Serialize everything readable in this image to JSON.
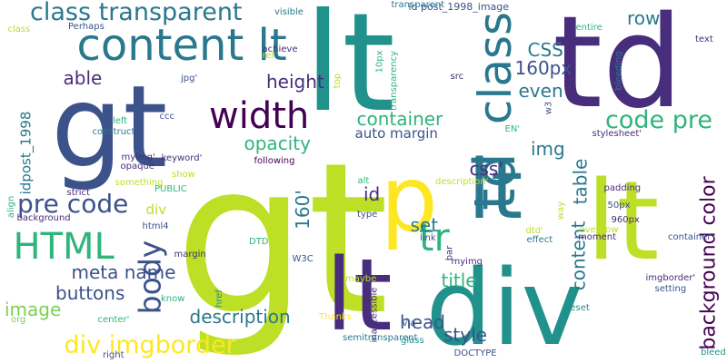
{
  "palette": {
    "background": "#ffffff",
    "lime": "#bddf26",
    "green": "#2fb47c",
    "teal": "#21918c",
    "blue": "#2a788e",
    "navy": "#3b528b",
    "indigo": "#472d7b",
    "purple": "#440154",
    "yellow": "#fde725",
    "light_green": "#7ad151"
  },
  "words": [
    {
      "text": "gt",
      "color": "lime",
      "vertical": false
    },
    {
      "text": "lt",
      "color": "teal",
      "vertical": false
    },
    {
      "text": "gt",
      "color": "navy",
      "vertical": false
    },
    {
      "text": "td",
      "color": "indigo",
      "vertical": false
    },
    {
      "text": "div",
      "color": "teal",
      "vertical": false
    },
    {
      "text": "lt",
      "color": "lime",
      "vertical": false
    },
    {
      "text": "lt",
      "color": "indigo",
      "vertical": false
    },
    {
      "text": "p",
      "color": "yellow",
      "vertical": false
    },
    {
      "text": "lt",
      "color": "blue",
      "vertical": false
    },
    {
      "text": "td",
      "color": "blue",
      "vertical": true
    },
    {
      "text": "class",
      "color": "blue",
      "vertical": true
    },
    {
      "text": "content lt",
      "color": "blue",
      "vertical": false
    },
    {
      "text": "class transparent",
      "color": "blue",
      "vertical": false
    },
    {
      "text": "width",
      "color": "purple",
      "vertical": false
    },
    {
      "text": "code pre",
      "color": "green",
      "vertical": false
    },
    {
      "text": "HTML",
      "color": "green",
      "vertical": false
    },
    {
      "text": "tr",
      "color": "green",
      "vertical": false
    },
    {
      "text": "body",
      "color": "navy",
      "vertical": true
    },
    {
      "text": "pre code",
      "color": "navy",
      "vertical": false
    },
    {
      "text": "container",
      "color": "green",
      "vertical": false
    },
    {
      "text": "height",
      "color": "indigo",
      "vertical": false
    },
    {
      "text": "opacity",
      "color": "green",
      "vertical": false
    },
    {
      "text": "div imgborder",
      "color": "yellow",
      "vertical": false
    },
    {
      "text": "description",
      "color": "blue",
      "vertical": false
    },
    {
      "text": "background color",
      "color": "purple",
      "vertical": true
    },
    {
      "text": "160px",
      "color": "navy",
      "vertical": false
    },
    {
      "text": "row",
      "color": "blue",
      "vertical": false
    },
    {
      "text": "even",
      "color": "blue",
      "vertical": false
    },
    {
      "text": "CSS",
      "color": "blue",
      "vertical": false
    },
    {
      "text": "img",
      "color": "blue",
      "vertical": false
    },
    {
      "text": "css'",
      "color": "indigo",
      "vertical": false
    },
    {
      "text": "able",
      "color": "indigo",
      "vertical": false
    },
    {
      "text": "meta name",
      "color": "navy",
      "vertical": false
    },
    {
      "text": "buttons",
      "color": "navy",
      "vertical": false
    },
    {
      "text": "image",
      "color": "light_green",
      "vertical": false
    },
    {
      "text": "head",
      "color": "navy",
      "vertical": false
    },
    {
      "text": "title",
      "color": "green",
      "vertical": false
    },
    {
      "text": "style",
      "color": "navy",
      "vertical": false
    },
    {
      "text": "set",
      "color": "blue",
      "vertical": false
    },
    {
      "text": "id",
      "color": "indigo",
      "vertical": false
    },
    {
      "text": "auto margin",
      "color": "navy",
      "vertical": false
    },
    {
      "text": "table",
      "color": "blue",
      "vertical": true
    },
    {
      "text": "content",
      "color": "blue",
      "vertical": true
    },
    {
      "text": "160'",
      "color": "blue",
      "vertical": true
    },
    {
      "text": "id post_1998_image",
      "color": "navy",
      "vertical": false
    },
    {
      "text": "div",
      "color": "lime",
      "vertical": false
    },
    {
      "text": "idpost_1998",
      "color": "blue",
      "vertical": true
    },
    {
      "text": "transparent",
      "color": "blue",
      "vertical": false
    },
    {
      "text": "visible",
      "color": "blue",
      "vertical": false
    },
    {
      "text": "class",
      "color": "lime",
      "vertical": false
    },
    {
      "text": "achieve",
      "color": "indigo",
      "vertical": false
    },
    {
      "text": "rel",
      "color": "lime",
      "vertical": false
    },
    {
      "text": "jpg'",
      "color": "navy",
      "vertical": false
    },
    {
      "text": "top",
      "color": "lime",
      "vertical": true
    },
    {
      "text": "10px",
      "color": "green",
      "vertical": true
    },
    {
      "text": "transparency",
      "color": "green",
      "vertical": true
    },
    {
      "text": "src",
      "color": "indigo",
      "vertical": false
    },
    {
      "text": "bleeding",
      "color": "blue",
      "vertical": true
    },
    {
      "text": "text",
      "color": "indigo",
      "vertical": false
    },
    {
      "text": "entire",
      "color": "green",
      "vertical": false
    },
    {
      "text": "w3",
      "color": "navy",
      "vertical": true
    },
    {
      "text": "EN'",
      "color": "green",
      "vertical": false
    },
    {
      "text": "stylesheet'",
      "color": "indigo",
      "vertical": false
    },
    {
      "text": "left",
      "color": "green",
      "vertical": false
    },
    {
      "text": "ccc",
      "color": "navy",
      "vertical": false
    },
    {
      "text": "construct",
      "color": "blue",
      "vertical": false
    },
    {
      "text": "Perhaps",
      "color": "navy",
      "vertical": false
    },
    {
      "text": "myimg'",
      "color": "indigo",
      "vertical": false
    },
    {
      "text": "keyword'",
      "color": "indigo",
      "vertical": false
    },
    {
      "text": "opaque",
      "color": "indigo",
      "vertical": false
    },
    {
      "text": "following",
      "color": "purple",
      "vertical": false
    },
    {
      "text": "show",
      "color": "lime",
      "vertical": false
    },
    {
      "text": "something",
      "color": "lime",
      "vertical": false
    },
    {
      "text": "PUBLIC",
      "color": "green",
      "vertical": false
    },
    {
      "text": "strict",
      "color": "indigo",
      "vertical": false
    },
    {
      "text": "align",
      "color": "green",
      "vertical": true
    },
    {
      "text": "background",
      "color": "indigo",
      "vertical": false
    },
    {
      "text": "html4",
      "color": "navy",
      "vertical": false
    },
    {
      "text": "DTD",
      "color": "green",
      "vertical": false
    },
    {
      "text": "type",
      "color": "navy",
      "vertical": false
    },
    {
      "text": "link",
      "color": "navy",
      "vertical": false
    },
    {
      "text": "way",
      "color": "lime",
      "vertical": true
    },
    {
      "text": "description'",
      "color": "lime",
      "vertical": false
    },
    {
      "text": "bar",
      "color": "indigo",
      "vertical": true
    },
    {
      "text": "padding",
      "color": "indigo",
      "vertical": false
    },
    {
      "text": "50px",
      "color": "navy",
      "vertical": false
    },
    {
      "text": "960px",
      "color": "indigo",
      "vertical": false
    },
    {
      "text": "dtd'",
      "color": "lime",
      "vertical": false
    },
    {
      "text": "overflow",
      "color": "lime",
      "vertical": false
    },
    {
      "text": "effect",
      "color": "blue",
      "vertical": false
    },
    {
      "text": "moment",
      "color": "indigo",
      "vertical": false
    },
    {
      "text": "container'",
      "color": "navy",
      "vertical": false
    },
    {
      "text": "margin",
      "color": "indigo",
      "vertical": false
    },
    {
      "text": "know",
      "color": "green",
      "vertical": false
    },
    {
      "text": "href",
      "color": "teal",
      "vertical": true
    },
    {
      "text": "W3C",
      "color": "navy",
      "vertical": false
    },
    {
      "text": "maybe",
      "color": "lime",
      "vertical": false
    },
    {
      "text": "myimg",
      "color": "indigo",
      "vertical": false
    },
    {
      "text": "imgborder'",
      "color": "indigo",
      "vertical": false
    },
    {
      "text": "setting",
      "color": "navy",
      "vertical": false
    },
    {
      "text": "reset",
      "color": "teal",
      "vertical": false
    },
    {
      "text": "org",
      "color": "light_green",
      "vertical": false
    },
    {
      "text": "center'",
      "color": "green",
      "vertical": false
    },
    {
      "text": "Thanks",
      "color": "yellow",
      "vertical": false
    },
    {
      "text": "inaccessible",
      "color": "indigo",
      "vertical": true
    },
    {
      "text": "via",
      "color": "navy",
      "vertical": false
    },
    {
      "text": "semitransparent",
      "color": "blue",
      "vertical": false
    },
    {
      "text": "glass",
      "color": "teal",
      "vertical": false
    },
    {
      "text": "right",
      "color": "navy",
      "vertical": false
    },
    {
      "text": "DOCTYPE",
      "color": "navy",
      "vertical": false
    },
    {
      "text": "bleed",
      "color": "teal",
      "vertical": false
    },
    {
      "text": "alt",
      "color": "green",
      "vertical": false
    }
  ]
}
